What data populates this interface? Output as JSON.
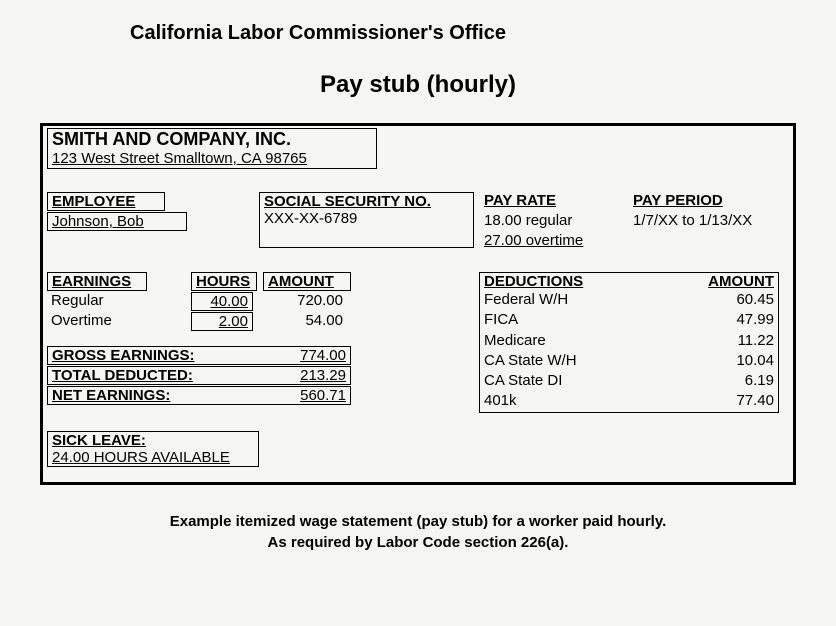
{
  "header": {
    "office": "California Labor Commissioner's Office",
    "title": "Pay stub (hourly)"
  },
  "company": {
    "name": "SMITH AND COMPANY, INC.",
    "address": "123 West Street Smalltown, CA  98765"
  },
  "employee": {
    "label": "EMPLOYEE",
    "name": "Johnson, Bob"
  },
  "ssn": {
    "label": "SOCIAL SECURITY NO.",
    "value": "XXX-XX-6789"
  },
  "payrate": {
    "label": "PAY RATE",
    "line1": "18.00   regular",
    "line2": "27.00   overtime"
  },
  "payperiod": {
    "label": "PAY PERIOD",
    "value": "1/7/XX to 1/13/XX"
  },
  "earnings": {
    "header_earnings": "EARNINGS",
    "header_hours": "HOURS",
    "header_amount": "AMOUNT",
    "rows": [
      {
        "label": "Regular",
        "hours": "40.00",
        "amount": "720.00"
      },
      {
        "label": "Overtime",
        "hours": "2.00",
        "amount": "54.00"
      }
    ]
  },
  "summary": {
    "gross_label": "GROSS EARNINGS:",
    "gross_value": "774.00",
    "deducted_label": "TOTAL DEDUCTED:",
    "deducted_value": "213.29",
    "net_label": "NET EARNINGS:",
    "net_value": "560.71"
  },
  "deductions": {
    "header_label": "DEDUCTIONS",
    "header_amount": "AMOUNT",
    "rows": [
      {
        "label": "Federal W/H",
        "amount": "60.45"
      },
      {
        "label": "FICA",
        "amount": "47.99"
      },
      {
        "label": "Medicare",
        "amount": "11.22"
      },
      {
        "label": "CA State W/H",
        "amount": "10.04"
      },
      {
        "label": "CA State DI",
        "amount": "6.19"
      },
      {
        "label": "401k",
        "amount": "77.40"
      }
    ]
  },
  "sickleave": {
    "label": "SICK LEAVE:",
    "value": "24.00 HOURS AVAILABLE"
  },
  "footer": {
    "line1": "Example itemized wage statement (pay stub) for a worker paid hourly.",
    "line2": "As required by Labor Code section 226(a)."
  },
  "colors": {
    "background": "#f5f5f3",
    "text": "#000000",
    "border": "#000000"
  }
}
